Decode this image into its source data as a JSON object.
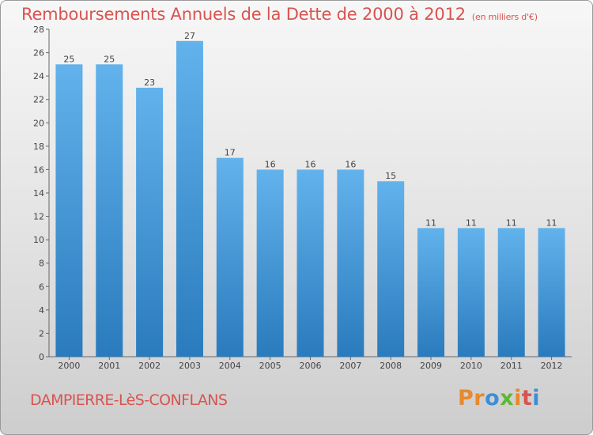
{
  "header": {
    "title": "Remboursements Annuels de la Dette de 2000 à 2012",
    "unit": "(en milliers d'€)"
  },
  "footer": {
    "town": "DAMPIERRE-LèS-CONFLANS",
    "logo": "Proxiti",
    "logo_letters": [
      {
        "char": "P",
        "color": "#e8892c"
      },
      {
        "char": "r",
        "color": "#e8892c"
      },
      {
        "char": "o",
        "color": "#3c8ed8"
      },
      {
        "char": "x",
        "color": "#5fb833"
      },
      {
        "char": "i",
        "color": "#e8892c"
      },
      {
        "char": "t",
        "color": "#d9534f"
      },
      {
        "char": "i",
        "color": "#3c8ed8"
      }
    ]
  },
  "chart_data": {
    "type": "bar",
    "title": "Remboursements Annuels de la Dette de 2000 à 2012",
    "subtitle": "(en milliers d'€)",
    "xlabel": "",
    "ylabel": "",
    "categories": [
      "2000",
      "2001",
      "2002",
      "2003",
      "2004",
      "2005",
      "2006",
      "2007",
      "2008",
      "2009",
      "2010",
      "2011",
      "2012"
    ],
    "values": [
      25,
      25,
      23,
      27,
      17,
      16,
      16,
      16,
      15,
      11,
      11,
      11,
      11
    ],
    "ylim": [
      0,
      28
    ],
    "yticks": [
      0,
      2,
      4,
      6,
      8,
      10,
      12,
      14,
      16,
      18,
      20,
      22,
      24,
      26,
      28
    ],
    "grid": false,
    "colors": {
      "bar_top": "#62b2ec",
      "bar_bottom": "#2a7bbd",
      "text": "#444444",
      "accent": "#d9534f"
    }
  }
}
